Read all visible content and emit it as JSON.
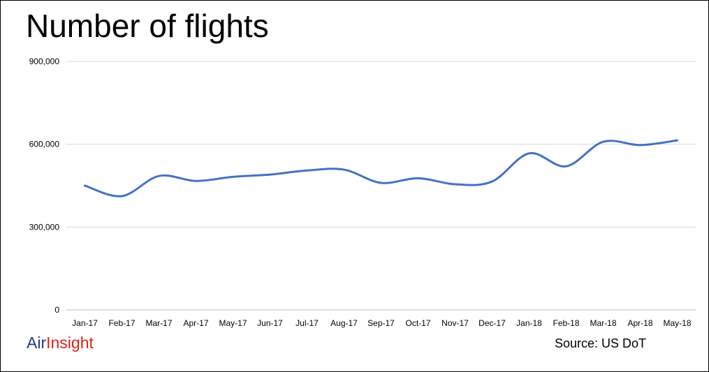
{
  "colors": {
    "line": "#4472C4",
    "grid": "#D9D9D9",
    "logo_part1": "#1F3A7A",
    "logo_part2": "#E0211B"
  },
  "footer": {
    "logo_part1": "Air",
    "logo_part2": "Insight",
    "source": "Source: US DoT"
  },
  "chart_data": {
    "type": "line",
    "title": "Number of flights",
    "xlabel": "",
    "ylabel": "",
    "ylim": [
      0,
      900000
    ],
    "yticks": [
      0,
      300000,
      600000,
      900000
    ],
    "ytick_labels": [
      "0",
      "300,000",
      "600,000",
      "900,000"
    ],
    "grid": true,
    "smooth": true,
    "categories": [
      "Jan-17",
      "Feb-17",
      "Mar-17",
      "Apr-17",
      "May-17",
      "Jun-17",
      "Jul-17",
      "Aug-17",
      "Sep-17",
      "Oct-17",
      "Nov-17",
      "Dec-17",
      "Jan-18",
      "Feb-18",
      "Mar-18",
      "Apr-18",
      "May-18"
    ],
    "series": [
      {
        "values": [
          450000,
          412000,
          485000,
          467000,
          482000,
          490000,
          505000,
          508000,
          460000,
          477000,
          455000,
          465000,
          567000,
          520000,
          609000,
          597000,
          614000
        ]
      }
    ]
  }
}
